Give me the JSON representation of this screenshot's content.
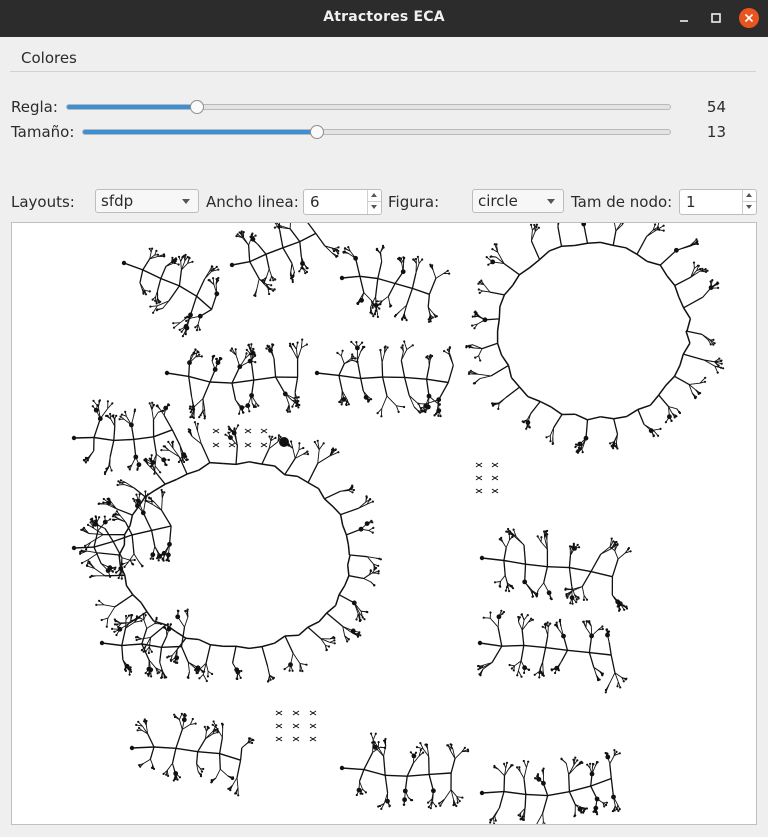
{
  "window": {
    "title": "Atractores ECA"
  },
  "menu": {
    "items": [
      "Colores"
    ]
  },
  "sliders": {
    "regla": {
      "label": "Regla:",
      "value": "54",
      "fraction": 0.218
    },
    "tamano": {
      "label": "Tamaño:",
      "value": "13",
      "fraction": 0.4
    }
  },
  "controls": {
    "layouts_label": "Layouts:",
    "layouts_value": "sfdp",
    "ancho_label": "Ancho linea:",
    "ancho_value": "6",
    "figura_label": "Figura:",
    "figura_value": "circle",
    "tam_nodo_label": "Tam de nodo:",
    "tam_nodo_value": "1"
  },
  "colors": {
    "accent": "#3a8fd6",
    "close": "#e95420",
    "titlebar": "#2c2c2c",
    "graph": "#111111"
  },
  "icons": {
    "minimize": "minimize-icon",
    "maximize": "maximize-icon",
    "close": "close-icon"
  }
}
